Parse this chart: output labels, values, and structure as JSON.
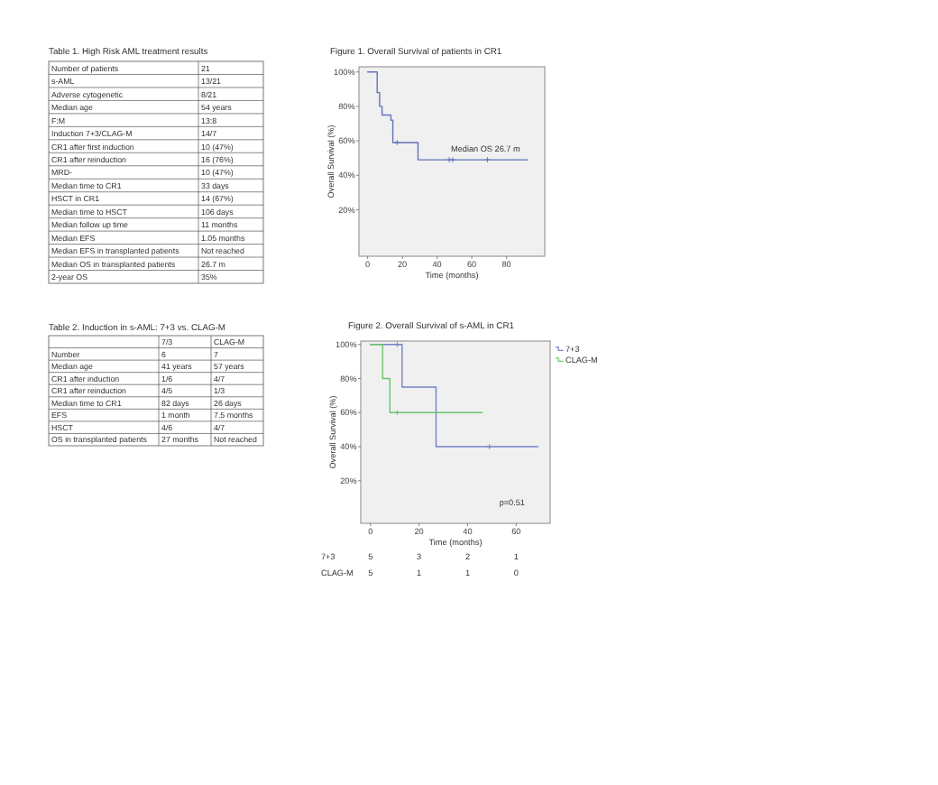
{
  "chart_data": [
    {
      "type": "other",
      "title": "Table 1. High Risk AML treatment results",
      "y_categories": [
        "Number of patients",
        "s-AML",
        "Adverse cytogenetic",
        "Median age",
        "F:M",
        "Induction 7+3/CLAG-M",
        "CR1 after first induction",
        "CR1 after reinduction",
        "MRD-",
        "Median time to CR1",
        "HSCT in CR1",
        "Median time to HSCT",
        "Median follow up time",
        "Median EFS",
        "Median EFS in transplanted patients",
        "Median OS in transplanted patients",
        "2-year OS"
      ],
      "cell_labels": [
        [
          "21"
        ],
        [
          "13/21"
        ],
        [
          "8/21"
        ],
        [
          "54 years"
        ],
        [
          "13:8"
        ],
        [
          "14/7"
        ],
        [
          "10 (47%)"
        ],
        [
          "16 (76%)"
        ],
        [
          "10 (47%)"
        ],
        [
          "33 days"
        ],
        [
          "14 (67%)"
        ],
        [
          "106 days"
        ],
        [
          "11 months"
        ],
        [
          "1.05 months"
        ],
        [
          "Not reached"
        ],
        [
          "26.7 m"
        ],
        [
          "35%"
        ]
      ]
    },
    {
      "type": "step",
      "title": "Figure 1. Overall Survival of patients in CR1",
      "xlabel": "Time (months)",
      "ylabel": "Overall Survival (%)",
      "series": [
        {
          "color": "#6272b8",
          "x": [
            0,
            5.5,
            6.9,
            8.3,
            13.4,
            14.5,
            29,
            92
          ],
          "values": [
            100,
            88,
            80,
            75,
            72,
            59,
            49,
            49
          ]
        },
        {
          "type": "scatter",
          "marker": "cross",
          "color": "#6272b8",
          "x": [
            17,
            47,
            49,
            69
          ],
          "values": [
            59,
            49,
            49,
            49
          ]
        }
      ],
      "xlim": [
        -5,
        102
      ],
      "ylim": [
        -7,
        103
      ],
      "xticks": [
        0,
        20,
        40,
        60,
        80
      ],
      "yticks": [
        {
          "value": 20,
          "label": "20%"
        },
        {
          "value": 40,
          "label": "40%"
        },
        {
          "value": 60,
          "label": "60%"
        },
        {
          "value": 80,
          "label": "80%"
        },
        {
          "value": 100,
          "label": "100%"
        }
      ],
      "annotations": [
        {
          "text": "Median OS 26.7 m",
          "x": 48,
          "y": 54
        }
      ]
    },
    {
      "type": "other",
      "title": "Table 2. Induction in s-AML: 7+3 vs. CLAG-M",
      "categories": [
        "7/3",
        "CLAG-M"
      ],
      "y_categories": [
        "Number",
        "Median age",
        "CR1 after induction",
        "CR1 after reinduction",
        "Median time to CR1",
        "EFS",
        "HSCT",
        "OS in transplanted patients"
      ],
      "cell_labels": [
        [
          "6",
          "7"
        ],
        [
          "41 years",
          "57 years"
        ],
        [
          "1/6",
          "4/7"
        ],
        [
          "4/5",
          "1/3"
        ],
        [
          "82 days",
          "26 days"
        ],
        [
          "1 month",
          "7.5 months"
        ],
        [
          "4/6",
          "4/7"
        ],
        [
          "27 months",
          "Not reached"
        ]
      ]
    },
    {
      "type": "step",
      "title": "Figure 2. Overall Survival of s-AML in CR1",
      "xlabel": "Time (months)",
      "ylabel": "Overall Survival (%)",
      "series": [
        {
          "name": "7+3",
          "color": "#7482c8",
          "x": [
            0,
            13,
            27,
            69
          ],
          "values": [
            100,
            75,
            40,
            40
          ]
        },
        {
          "name": "CLAG-M",
          "color": "#6cc46c",
          "x": [
            0,
            5,
            8,
            46
          ],
          "values": [
            100,
            80,
            60,
            60
          ]
        },
        {
          "type": "scatter",
          "marker": "cross",
          "color": "#7482c8",
          "x": [
            11,
            49
          ],
          "values": [
            100,
            40
          ]
        },
        {
          "type": "scatter",
          "marker": "cross",
          "color": "#6cc46c",
          "x": [
            11
          ],
          "values": [
            60
          ]
        }
      ],
      "xlim": [
        -4,
        74
      ],
      "ylim": [
        -5,
        102
      ],
      "xticks": [
        0,
        20,
        40,
        60
      ],
      "yticks": [
        {
          "value": 20,
          "label": "20%"
        },
        {
          "value": 40,
          "label": "40%"
        },
        {
          "value": 60,
          "label": "60%"
        },
        {
          "value": 80,
          "label": "80%"
        },
        {
          "value": 100,
          "label": "100%"
        }
      ],
      "annotations": [
        "p=0.51"
      ],
      "legend": "top right"
    },
    {
      "type": "other",
      "y_categories": [
        "7+3",
        "CLAG-M"
      ],
      "cell_labels": [
        [
          "5",
          "3",
          "2",
          "1"
        ],
        [
          "5",
          "1",
          "1",
          "0"
        ]
      ]
    }
  ]
}
